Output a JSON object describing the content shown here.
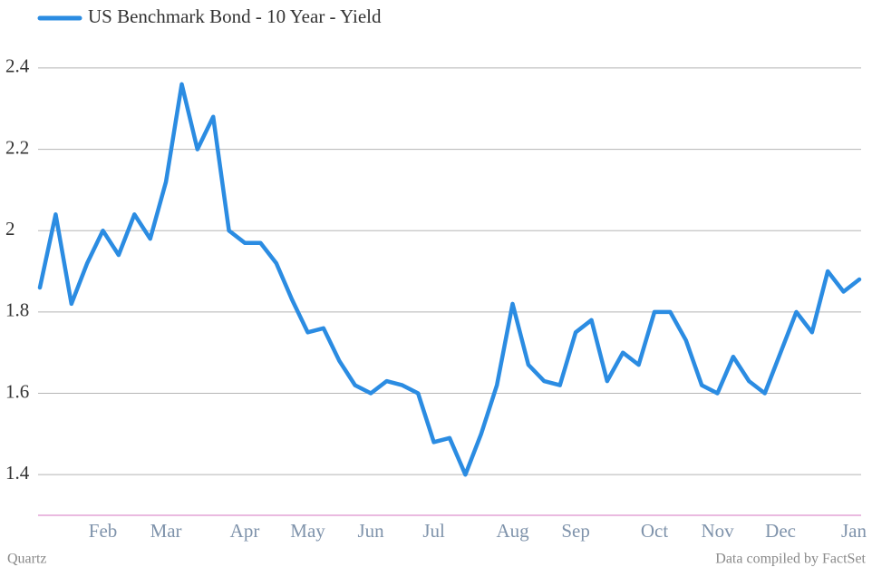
{
  "chart_data": {
    "type": "line",
    "legend": "top-left",
    "categories": [
      null,
      null,
      null,
      null,
      "Feb",
      null,
      null,
      null,
      "Mar",
      null,
      null,
      null,
      null,
      "Apr",
      null,
      null,
      null,
      "May",
      null,
      null,
      null,
      "Jun",
      null,
      null,
      null,
      "Jul",
      null,
      null,
      null,
      null,
      "Aug",
      null,
      null,
      null,
      "Sep",
      null,
      null,
      null,
      null,
      "Oct",
      null,
      null,
      null,
      "Nov",
      null,
      null,
      null,
      "Dec",
      null,
      null,
      null,
      null,
      "Jan"
    ],
    "series": [
      {
        "name": "US Benchmark Bond - 10 Year - Yield",
        "color": "#2b8ce2",
        "values": [
          1.86,
          2.04,
          1.82,
          1.92,
          2.0,
          1.94,
          2.04,
          1.98,
          2.12,
          2.36,
          2.2,
          2.28,
          2.0,
          1.97,
          1.97,
          1.92,
          1.83,
          1.75,
          1.76,
          1.68,
          1.62,
          1.6,
          1.63,
          1.62,
          1.6,
          1.48,
          1.49,
          1.4,
          1.5,
          1.62,
          1.82,
          1.67,
          1.63,
          1.62,
          1.75,
          1.78,
          1.63,
          1.7,
          1.67,
          1.8,
          1.8,
          1.73,
          1.62,
          1.6,
          1.69,
          1.63,
          1.6,
          1.7,
          1.8,
          1.75,
          1.9,
          1.85,
          1.88
        ]
      }
    ],
    "ylim": [
      1.3,
      2.45
    ],
    "yticks": [
      1.4,
      1.6,
      1.8,
      2,
      2.2,
      2.4
    ],
    "grid": true,
    "source_left": "Quartz",
    "source_right": "Data compiled by FactSet"
  }
}
